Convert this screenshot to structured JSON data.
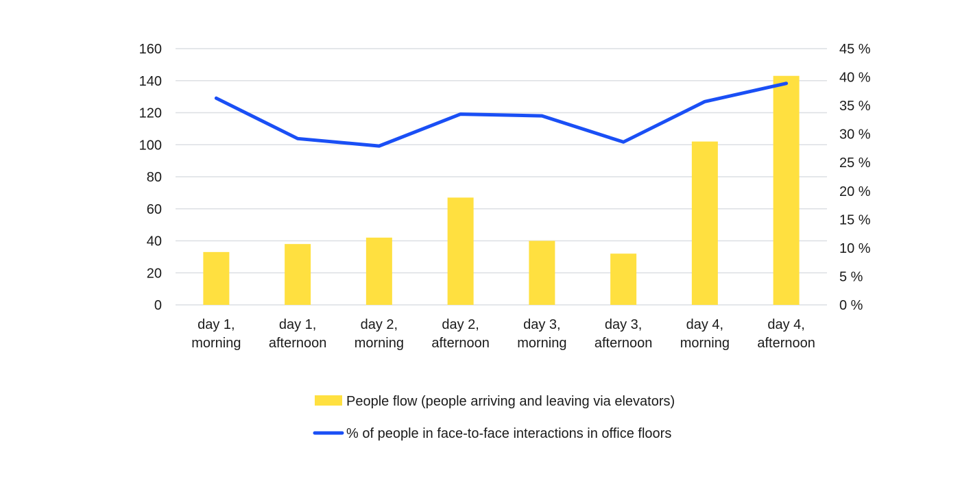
{
  "chart_data": {
    "type": "bar+line",
    "categories": [
      [
        "day 1,",
        "morning"
      ],
      [
        "day 1,",
        "afternoon"
      ],
      [
        "day 2,",
        "morning"
      ],
      [
        "day 2,",
        "afternoon"
      ],
      [
        "day 3,",
        "morning"
      ],
      [
        "day 3,",
        "afternoon"
      ],
      [
        "day 4,",
        "morning"
      ],
      [
        "day 4,",
        "afternoon"
      ]
    ],
    "series": [
      {
        "name": "People flow (people arriving and leaving via elevators)",
        "type": "bar",
        "axis": "left",
        "color": "#FFE040",
        "values": [
          33,
          38,
          42,
          67,
          40,
          32,
          102,
          143
        ]
      },
      {
        "name": "% of people in face-to-face interactions in office floors",
        "type": "line",
        "axis": "right",
        "color": "#1A4FF5",
        "values": [
          36.3,
          29.2,
          27.9,
          33.5,
          33.2,
          28.6,
          35.7,
          38.9
        ]
      }
    ],
    "ylim": [
      0,
      160
    ],
    "yticks": [
      0,
      20,
      40,
      60,
      80,
      100,
      120,
      140,
      160
    ],
    "y2lim": [
      0,
      45
    ],
    "y2ticks": [
      "0 %",
      "5 %",
      "10 %",
      "15 %",
      "20 %",
      "25 %",
      "30 %",
      "35 %",
      "40 %",
      "45 %"
    ],
    "grid": true,
    "legend": "bottom"
  }
}
